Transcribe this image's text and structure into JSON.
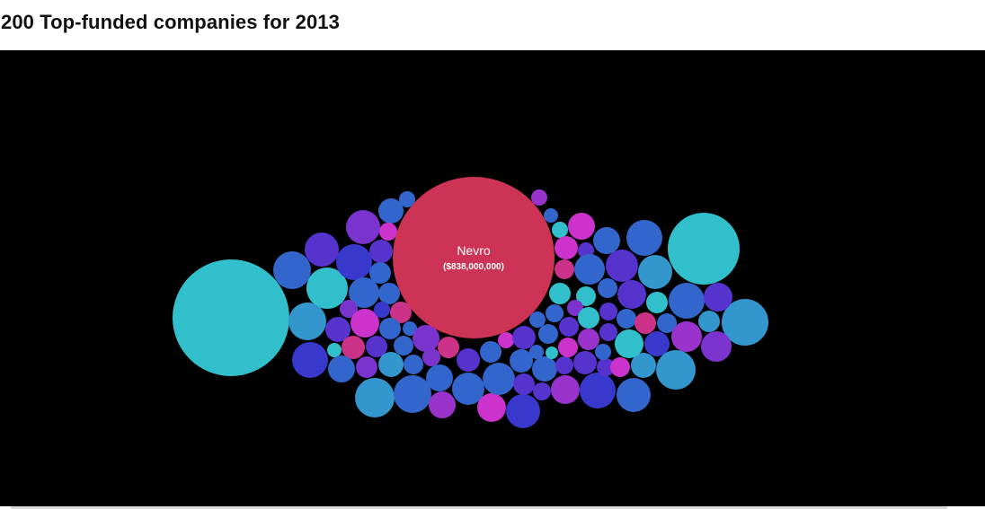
{
  "page": {
    "title": "200 Top-funded companies for 2013"
  },
  "chart_data": {
    "type": "bubble",
    "title": "200 Top-funded companies for 2013",
    "labeled": [
      {
        "name": "Nevro",
        "value_label": "($838,000,000)",
        "value": 838000000,
        "color": "#cc3355"
      }
    ],
    "colors": {
      "background": "#000000",
      "cyan": "#31bfcc",
      "sky": "#3396cc",
      "blue": "#3366cc",
      "royal": "#3838cc",
      "indigo": "#5533cc",
      "violet": "#7a33cc",
      "purple": "#9933cc",
      "magenta": "#cc33cc",
      "pink": "#cc3388",
      "crimson": "#cc3355"
    }
  }
}
